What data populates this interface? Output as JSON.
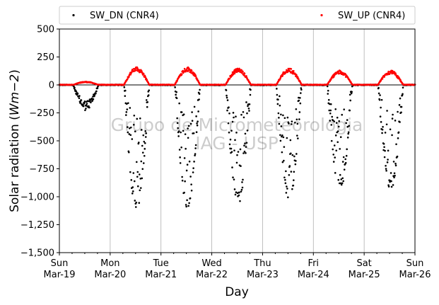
{
  "chart_data": {
    "type": "scatter",
    "xlabel": "Day",
    "ylabel_main": "Solar radiation (",
    "ylabel_unit": "Wm−2",
    "ylabel_close": ")",
    "ylim": [
      -1500,
      500
    ],
    "yticks": [
      500,
      250,
      0,
      -250,
      -500,
      -750,
      -1000,
      -1250,
      -1500
    ],
    "xlim": [
      "2023-03-19",
      "2023-03-26"
    ],
    "xticks": [
      {
        "date": "2023-03-19",
        "day": "Sun",
        "label": "Mar-19"
      },
      {
        "date": "2023-03-20",
        "day": "Mon",
        "label": "Mar-20"
      },
      {
        "date": "2023-03-21",
        "day": "Tue",
        "label": "Mar-21"
      },
      {
        "date": "2023-03-22",
        "day": "Wed",
        "label": "Mar-22"
      },
      {
        "date": "2023-03-23",
        "day": "Thu",
        "label": "Mar-23"
      },
      {
        "date": "2023-03-24",
        "day": "Fri",
        "label": "Mar-24"
      },
      {
        "date": "2023-03-25",
        "day": "Sat",
        "label": "Mar-25"
      },
      {
        "date": "2023-03-26",
        "day": "Sun",
        "label": "Mar-26"
      }
    ],
    "grid": "vertical",
    "legend_placement": "top",
    "watermark": [
      "Grupo de Micrometeorologia",
      "IAG - USP"
    ],
    "series": [
      {
        "name": "SW_DN (CNR4)",
        "color": "#000000",
        "daily_peaks": [
          {
            "date": "2023-03-19",
            "min": -230
          },
          {
            "date": "2023-03-20",
            "min": -1130
          },
          {
            "date": "2023-03-21",
            "min": -1100
          },
          {
            "date": "2023-03-22",
            "min": -1070
          },
          {
            "date": "2023-03-23",
            "min": -1040
          },
          {
            "date": "2023-03-24",
            "min": -950
          },
          {
            "date": "2023-03-25",
            "min": -950
          }
        ]
      },
      {
        "name": "SW_UP (CNR4)",
        "color": "#ff0000",
        "daily_peaks": [
          {
            "date": "2023-03-19",
            "max": 30
          },
          {
            "date": "2023-03-20",
            "max": 160
          },
          {
            "date": "2023-03-21",
            "max": 160
          },
          {
            "date": "2023-03-22",
            "max": 150
          },
          {
            "date": "2023-03-23",
            "max": 150
          },
          {
            "date": "2023-03-24",
            "max": 130
          },
          {
            "date": "2023-03-25",
            "max": 130
          }
        ]
      }
    ]
  }
}
